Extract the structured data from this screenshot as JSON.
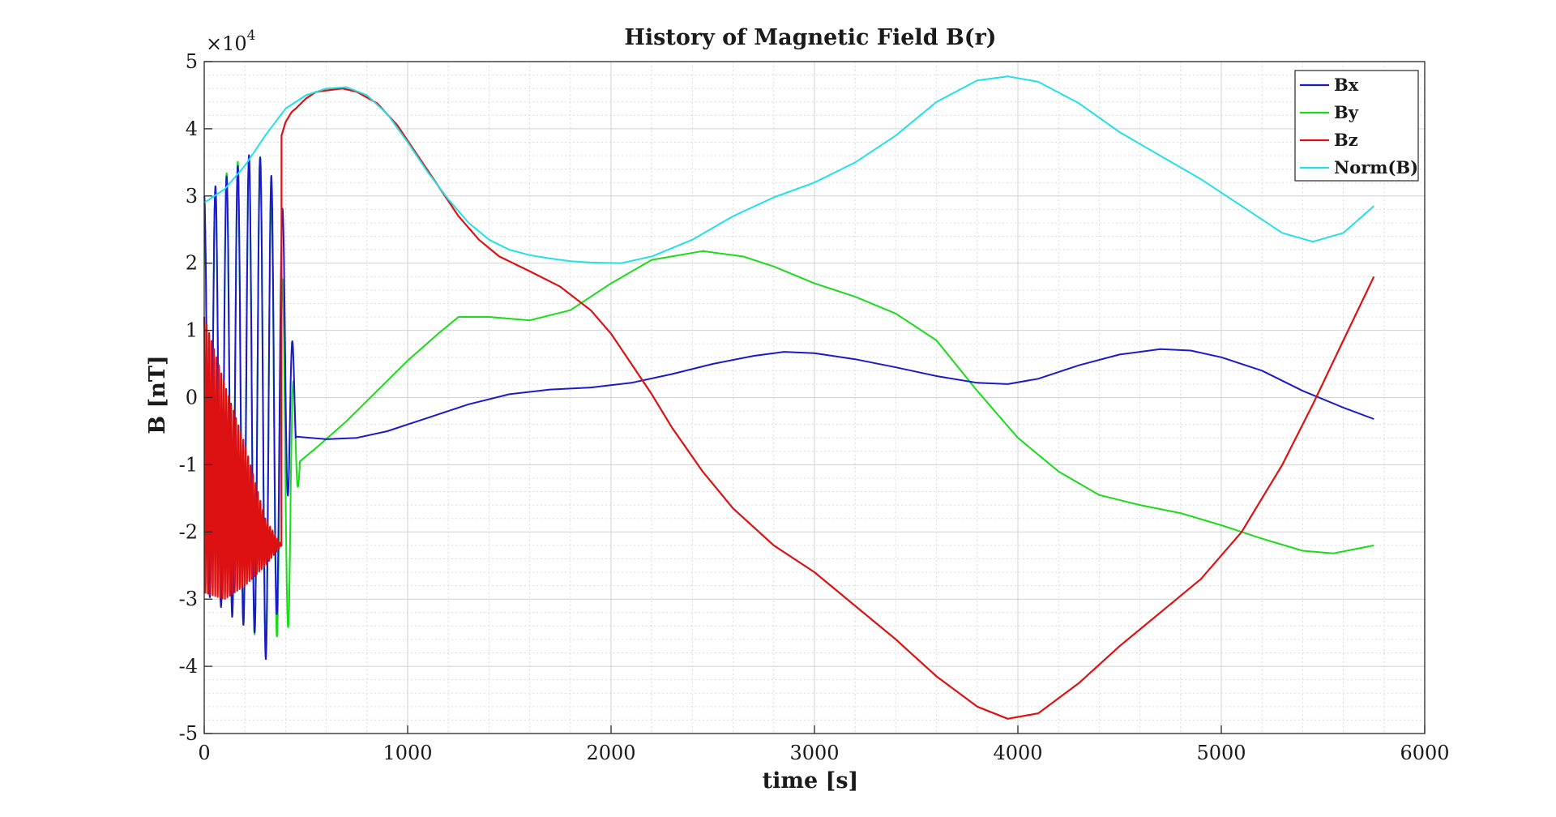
{
  "chart_data": {
    "type": "line",
    "title": "History of Magnetic Field B(r)",
    "xlabel": "time [s]",
    "ylabel": "B [nT]",
    "xlim": [
      0,
      6000
    ],
    "ylim": [
      -5,
      5
    ],
    "y_scale_exponent_label": "×10",
    "y_scale_exponent_power": "4",
    "x_ticks": [
      0,
      1000,
      2000,
      3000,
      4000,
      5000,
      6000
    ],
    "x_tick_labels": [
      "0",
      "1000",
      "2000",
      "3000",
      "4000",
      "5000",
      "6000"
    ],
    "y_ticks": [
      -5,
      -4,
      -3,
      -2,
      -1,
      0,
      1,
      2,
      3,
      4,
      5
    ],
    "y_tick_labels": [
      "-5",
      "-4",
      "-3",
      "-2",
      "-1",
      "0",
      "1",
      "2",
      "3",
      "4",
      "5"
    ],
    "grid": true,
    "minor_grid": true,
    "legend_position": "top-right",
    "series": [
      {
        "name": "Bx",
        "color": "#1a1acc",
        "oscillation": {
          "x_start": 0,
          "x_end": 450,
          "period": 55,
          "envelope": [
            [
              0,
              -2.9,
              3.0
            ],
            [
              150,
              -3.3,
              3.4
            ],
            [
              250,
              -3.5,
              3.7
            ],
            [
              330,
              -4.1,
              3.3
            ],
            [
              420,
              -1.2,
              2.5
            ],
            [
              450,
              -0.6,
              -0.6
            ]
          ]
        },
        "x": [
          450,
          600,
          750,
          900,
          1100,
          1300,
          1500,
          1700,
          1900,
          2100,
          2300,
          2500,
          2700,
          2850,
          3000,
          3200,
          3400,
          3600,
          3800,
          3950,
          4100,
          4300,
          4500,
          4700,
          4850,
          5000,
          5200,
          5400,
          5600,
          5750
        ],
        "values": [
          -0.58,
          -0.62,
          -0.6,
          -0.5,
          -0.3,
          -0.1,
          0.05,
          0.12,
          0.15,
          0.22,
          0.35,
          0.5,
          0.62,
          0.68,
          0.66,
          0.57,
          0.45,
          0.32,
          0.22,
          0.2,
          0.28,
          0.48,
          0.64,
          0.72,
          0.7,
          0.6,
          0.4,
          0.1,
          -0.15,
          -0.32
        ]
      },
      {
        "name": "By",
        "color": "#1adb1a",
        "oscillation": {
          "x_start": 0,
          "x_end": 470,
          "period": 55,
          "envelope": [
            [
              0,
              -2.9,
              2.9
            ],
            [
              150,
              -3.2,
              3.5
            ],
            [
              300,
              -3.7,
              3.6
            ],
            [
              420,
              -3.4,
              1.0
            ],
            [
              470,
              -1.0,
              -1.0
            ]
          ]
        },
        "x": [
          470,
          550,
          700,
          850,
          1000,
          1150,
          1250,
          1400,
          1600,
          1800,
          2000,
          2200,
          2450,
          2650,
          2800,
          3000,
          3200,
          3400,
          3600,
          3800,
          4000,
          4200,
          4400,
          4600,
          4800,
          5000,
          5200,
          5400,
          5550,
          5750
        ],
        "values": [
          -0.95,
          -0.75,
          -0.35,
          0.1,
          0.55,
          0.95,
          1.2,
          1.2,
          1.15,
          1.3,
          1.7,
          2.05,
          2.18,
          2.1,
          1.95,
          1.7,
          1.5,
          1.25,
          0.85,
          0.1,
          -0.6,
          -1.1,
          -1.45,
          -1.6,
          -1.72,
          -1.9,
          -2.1,
          -2.28,
          -2.32,
          -2.2
        ]
      },
      {
        "name": "Bz",
        "color": "#dd1111",
        "oscillation": {
          "x_start": 0,
          "x_end": 380,
          "period": 12,
          "envelope": [
            [
              0,
              -2.9,
              1.2
            ],
            [
              100,
              -3.0,
              0.2
            ],
            [
              200,
              -2.8,
              -0.7
            ],
            [
              300,
              -2.5,
              -1.8
            ],
            [
              380,
              -2.2,
              -2.2
            ]
          ]
        },
        "x": [
          380,
          400,
          430,
          450,
          500,
          550,
          600,
          680,
          750,
          850,
          950,
          1050,
          1150,
          1250,
          1350,
          1450,
          1600,
          1750,
          1900,
          2000,
          2100,
          2200,
          2300,
          2450,
          2600,
          2800,
          3000,
          3200,
          3400,
          3600,
          3800,
          3950,
          4100,
          4300,
          4500,
          4700,
          4900,
          5100,
          5300,
          5450,
          5600,
          5750
        ],
        "values": [
          3.9,
          4.1,
          4.25,
          4.3,
          4.45,
          4.55,
          4.57,
          4.6,
          4.55,
          4.38,
          4.05,
          3.6,
          3.15,
          2.7,
          2.35,
          2.1,
          1.88,
          1.65,
          1.3,
          0.95,
          0.5,
          0.05,
          -0.45,
          -1.1,
          -1.65,
          -2.2,
          -2.6,
          -3.1,
          -3.6,
          -4.15,
          -4.6,
          -4.78,
          -4.7,
          -4.25,
          -3.7,
          -3.2,
          -2.7,
          -2.0,
          -1.0,
          -0.1,
          0.85,
          1.8
        ]
      },
      {
        "name": "Norm(B)",
        "color": "#22e0e8",
        "x": [
          0,
          100,
          200,
          300,
          400,
          500,
          600,
          700,
          800,
          900,
          1000,
          1100,
          1200,
          1300,
          1400,
          1500,
          1600,
          1700,
          1800,
          1900,
          2050,
          2200,
          2400,
          2600,
          2800,
          3000,
          3200,
          3400,
          3600,
          3800,
          3950,
          4100,
          4300,
          4500,
          4700,
          4900,
          5100,
          5300,
          5450,
          5600,
          5750
        ],
        "values": [
          2.9,
          3.1,
          3.45,
          3.9,
          4.3,
          4.5,
          4.6,
          4.62,
          4.5,
          4.22,
          3.8,
          3.35,
          2.95,
          2.6,
          2.35,
          2.2,
          2.12,
          2.07,
          2.03,
          2.01,
          2.0,
          2.1,
          2.35,
          2.7,
          2.98,
          3.2,
          3.5,
          3.9,
          4.4,
          4.72,
          4.78,
          4.7,
          4.38,
          3.95,
          3.6,
          3.25,
          2.85,
          2.45,
          2.32,
          2.45,
          2.85
        ]
      }
    ]
  }
}
